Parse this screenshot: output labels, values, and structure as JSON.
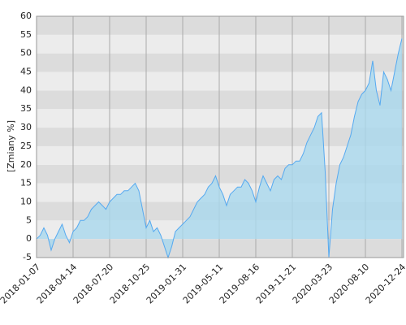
{
  "chart_data": {
    "type": "area",
    "y_label": "[Zmiany %]",
    "categories": [
      "2018-01-07",
      null,
      null,
      null,
      null,
      null,
      null,
      null,
      null,
      null,
      "2018-04-14",
      null,
      null,
      null,
      null,
      null,
      null,
      null,
      null,
      null,
      "2018-07-20",
      null,
      null,
      null,
      null,
      null,
      null,
      null,
      null,
      null,
      "2018-10-25",
      null,
      null,
      null,
      null,
      null,
      null,
      null,
      null,
      null,
      "2019-01-31",
      null,
      null,
      null,
      null,
      null,
      null,
      null,
      null,
      null,
      "2019-05-11",
      null,
      null,
      null,
      null,
      null,
      null,
      null,
      null,
      null,
      "2019-08-16",
      null,
      null,
      null,
      null,
      null,
      null,
      null,
      null,
      null,
      "2019-11-21",
      null,
      null,
      null,
      null,
      null,
      null,
      null,
      null,
      null,
      "2020-03-23",
      null,
      null,
      null,
      null,
      null,
      null,
      null,
      null,
      null,
      "2020-08-10",
      null,
      null,
      null,
      null,
      null,
      null,
      null,
      null,
      null,
      "2020-12-24"
    ],
    "values": [
      0,
      1,
      3,
      1,
      -3,
      0,
      2,
      4,
      1,
      -1,
      2,
      3,
      5,
      5,
      6,
      8,
      9,
      10,
      9,
      8,
      10,
      11,
      12,
      12,
      13,
      13,
      14,
      15,
      13,
      8,
      3,
      5,
      2,
      3,
      1,
      -2,
      -5,
      -2,
      2,
      3,
      4,
      5,
      6,
      8,
      10,
      11,
      12,
      14,
      15,
      17,
      14,
      12,
      9,
      12,
      13,
      14,
      14,
      16,
      15,
      13,
      10,
      14,
      17,
      15,
      13,
      16,
      17,
      16,
      19,
      20,
      20,
      21,
      21,
      23,
      26,
      28,
      30,
      33,
      34,
      18,
      -5,
      8,
      15,
      20,
      22,
      25,
      28,
      33,
      37,
      39,
      40,
      42,
      48,
      40,
      36,
      45,
      43,
      40,
      45,
      50,
      54
    ],
    "color": "#55a9f0",
    "fill": "#a9d8ee",
    "ylim": [
      -5,
      60
    ],
    "yticks": [
      -5,
      0,
      5,
      10,
      15,
      20,
      25,
      30,
      35,
      40,
      45,
      50,
      55,
      60
    ],
    "grid": true
  }
}
